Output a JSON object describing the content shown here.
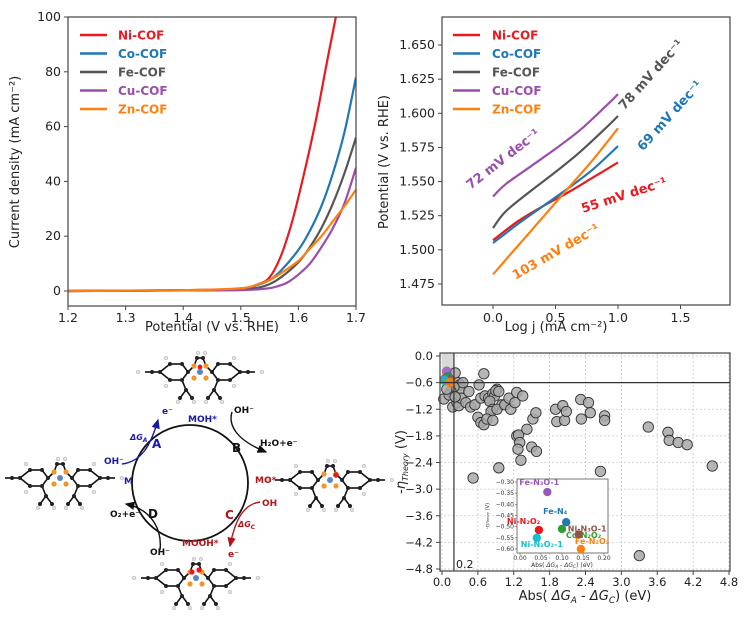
{
  "chart_data": [
    {
      "id": "lsv",
      "type": "line",
      "title": "",
      "xlabel": "Potential (V vs. RHE)",
      "ylabel": "Current density (mA cm⁻²)",
      "xlim": [
        1.2,
        1.7
      ],
      "ylim": [
        -5,
        100
      ],
      "xticks": [
        "1.2",
        "1.3",
        "1.4",
        "1.5",
        "1.6",
        "1.7"
      ],
      "yticks": [
        "0",
        "20",
        "40",
        "60",
        "80",
        "100"
      ],
      "legend_position": "top-left",
      "grid": false,
      "series": [
        {
          "name": "Ni-COF",
          "color": "#e8191f",
          "x": [
            1.2,
            1.4,
            1.5,
            1.53,
            1.55,
            1.57,
            1.59,
            1.61,
            1.63,
            1.65,
            1.665
          ],
          "y": [
            0,
            0.3,
            0.8,
            2.5,
            5,
            13,
            26,
            43,
            62,
            84,
            100
          ]
        },
        {
          "name": "Co-COF",
          "color": "#1f77b4",
          "x": [
            1.2,
            1.4,
            1.5,
            1.53,
            1.55,
            1.57,
            1.6,
            1.62,
            1.64,
            1.66,
            1.68,
            1.7
          ],
          "y": [
            0,
            0.3,
            0.8,
            2.3,
            4,
            7.5,
            15,
            22,
            31,
            43,
            58,
            78
          ]
        },
        {
          "name": "Fe-COF",
          "color": "#555555",
          "x": [
            1.2,
            1.4,
            1.5,
            1.53,
            1.55,
            1.57,
            1.6,
            1.62,
            1.64,
            1.66,
            1.68,
            1.7
          ],
          "y": [
            0,
            0.2,
            0.5,
            1.2,
            2.5,
            5,
            10.5,
            16,
            23,
            32,
            43,
            56
          ]
        },
        {
          "name": "Cu-COF",
          "color": "#9b4dab",
          "x": [
            1.2,
            1.4,
            1.5,
            1.54,
            1.56,
            1.58,
            1.6,
            1.62,
            1.64,
            1.66,
            1.68,
            1.7
          ],
          "y": [
            0,
            0.2,
            0.3,
            0.8,
            1.5,
            3,
            6,
            10,
            16,
            23,
            32,
            45
          ]
        },
        {
          "name": "Zn-COF",
          "color": "#ff7f0e",
          "x": [
            1.2,
            1.4,
            1.5,
            1.53,
            1.55,
            1.57,
            1.6,
            1.62,
            1.64,
            1.66,
            1.68,
            1.7
          ],
          "y": [
            0,
            0.3,
            1,
            2.5,
            4,
            6.5,
            11,
            15.5,
            20,
            25.5,
            31,
            37
          ]
        }
      ]
    },
    {
      "id": "tafel",
      "type": "line",
      "title": "",
      "xlabel": "Log j (mA cm⁻²)",
      "ylabel": "Potential (V vs. RHE)",
      "xlim": [
        -0.4,
        1.9
      ],
      "ylim": [
        1.46,
        1.67
      ],
      "xticks": [
        "0.0",
        "0.5",
        "1.0",
        "1.5"
      ],
      "yticks": [
        "1.475",
        "1.500",
        "1.525",
        "1.550",
        "1.575",
        "1.600",
        "1.625",
        "1.650"
      ],
      "legend_position": "top-left",
      "grid": false,
      "series": [
        {
          "name": "Ni-COF",
          "color": "#e8191f",
          "x": [
            0,
            0.2,
            0.4,
            0.6,
            0.8,
            1.0
          ],
          "y": [
            1.507,
            1.521,
            1.532,
            1.542,
            1.553,
            1.564
          ]
        },
        {
          "name": "Co-COF",
          "color": "#1f77b4",
          "x": [
            0,
            0.2,
            0.4,
            0.6,
            0.8,
            1.0
          ],
          "y": [
            1.505,
            1.519,
            1.532,
            1.545,
            1.559,
            1.576
          ]
        },
        {
          "name": "Fe-COF",
          "color": "#555555",
          "x": [
            0,
            0.1,
            0.3,
            0.5,
            0.7,
            0.9,
            1.0
          ],
          "y": [
            1.516,
            1.528,
            1.543,
            1.557,
            1.572,
            1.589,
            1.598
          ]
        },
        {
          "name": "Cu-COF",
          "color": "#9b4dab",
          "x": [
            0,
            0.1,
            0.3,
            0.5,
            0.7,
            0.9,
            1.0
          ],
          "y": [
            1.539,
            1.548,
            1.561,
            1.574,
            1.588,
            1.605,
            1.614
          ]
        },
        {
          "name": "Zn-COF",
          "color": "#ff7f0e",
          "x": [
            0,
            0.2,
            0.4,
            0.6,
            0.8,
            1.0
          ],
          "y": [
            1.482,
            1.503,
            1.524,
            1.545,
            1.566,
            1.589
          ]
        }
      ],
      "annotations": [
        {
          "text": "72 mV dec⁻¹",
          "color": "#9b4dab",
          "x": -0.18,
          "y": 1.544,
          "angle": -38
        },
        {
          "text": "78 mV dec⁻¹",
          "color": "#555555",
          "x": 1.05,
          "y": 1.602,
          "angle": -48
        },
        {
          "text": "69 mV dec⁻¹",
          "color": "#1f77b4",
          "x": 1.2,
          "y": 1.572,
          "angle": -48
        },
        {
          "text": "55 mV dec⁻¹",
          "color": "#e8191f",
          "x": 0.72,
          "y": 1.527,
          "angle": -18
        },
        {
          "text": "103 mV dec⁻¹",
          "color": "#ff7f0e",
          "x": 0.18,
          "y": 1.478,
          "angle": -30
        }
      ]
    },
    {
      "id": "scatter",
      "type": "scatter",
      "title": "",
      "xlabel": "Abs( ΔG_A - ΔG_C) (eV)",
      "ylabel": "-η_Theory (V)",
      "xlim": [
        -0.05,
        4.85
      ],
      "ylim": [
        -4.85,
        0.05
      ],
      "xticks": [
        "0.0",
        "0.6",
        "1.2",
        "1.8",
        "2.4",
        "3.0",
        "3.6",
        "4.2",
        "4.8"
      ],
      "yticks": [
        "0.0",
        "−0.6",
        "−1.2",
        "−1.8",
        "−2.4",
        "−3.0",
        "−3.6",
        "−4.2",
        "−4.8"
      ],
      "grid": true,
      "reference_lines": {
        "x": 0.2,
        "y": -0.6,
        "x_label": "0.2"
      },
      "highlight_region": {
        "x": [
          0,
          0.2
        ],
        "y": [
          -0.6,
          0
        ]
      },
      "points": [
        [
          0.03,
          -0.97
        ],
        [
          0.22,
          -0.38
        ],
        [
          0.27,
          -0.6
        ],
        [
          0.3,
          -0.65
        ],
        [
          0.3,
          -0.75
        ],
        [
          0.35,
          -0.6
        ],
        [
          0.2,
          -0.7
        ],
        [
          0.15,
          -0.8
        ],
        [
          0.12,
          -0.88
        ],
        [
          0.18,
          -1.15
        ],
        [
          0.25,
          -1.05
        ],
        [
          0.28,
          -1.12
        ],
        [
          0.32,
          -0.95
        ],
        [
          0.22,
          -0.92
        ],
        [
          0.08,
          -0.75
        ],
        [
          0.45,
          -0.8
        ],
        [
          0.4,
          -1.05
        ],
        [
          0.48,
          -1.15
        ],
        [
          0.55,
          -1.1
        ],
        [
          0.62,
          -0.65
        ],
        [
          0.7,
          -0.4
        ],
        [
          0.65,
          -0.95
        ],
        [
          0.72,
          -0.9
        ],
        [
          0.78,
          -0.95
        ],
        [
          0.85,
          -0.85
        ],
        [
          0.88,
          -0.9
        ],
        [
          0.92,
          -0.75
        ],
        [
          0.9,
          -0.78
        ],
        [
          0.8,
          -1.02
        ],
        [
          0.95,
          -0.8
        ],
        [
          1.0,
          -1.1
        ],
        [
          0.85,
          -1.2
        ],
        [
          0.82,
          -1.25
        ],
        [
          0.92,
          -1.2
        ],
        [
          1.05,
          -1.1
        ],
        [
          1.12,
          -0.95
        ],
        [
          1.15,
          -1.2
        ],
        [
          1.22,
          -1.05
        ],
        [
          1.25,
          -0.82
        ],
        [
          1.35,
          -0.9
        ],
        [
          0.6,
          -1.38
        ],
        [
          0.65,
          -1.5
        ],
        [
          0.7,
          -1.55
        ],
        [
          0.75,
          -1.42
        ],
        [
          0.85,
          -1.45
        ],
        [
          1.25,
          -1.8
        ],
        [
          1.28,
          -1.78
        ],
        [
          1.3,
          -1.95
        ],
        [
          1.27,
          -2.1
        ],
        [
          1.32,
          -2.35
        ],
        [
          1.42,
          -1.65
        ],
        [
          1.5,
          -2.05
        ],
        [
          1.52,
          -1.42
        ],
        [
          1.57,
          -1.28
        ],
        [
          1.58,
          -2.15
        ],
        [
          0.95,
          -2.52
        ],
        [
          0.52,
          -2.75
        ],
        [
          1.9,
          -1.2
        ],
        [
          1.92,
          -1.48
        ],
        [
          2.02,
          -1.12
        ],
        [
          2.05,
          -1.45
        ],
        [
          2.08,
          -1.25
        ],
        [
          2.32,
          -0.98
        ],
        [
          2.33,
          -1.42
        ],
        [
          2.45,
          -1.05
        ],
        [
          2.48,
          -1.28
        ],
        [
          2.65,
          -2.6
        ],
        [
          2.72,
          -1.35
        ],
        [
          2.72,
          -1.45
        ],
        [
          3.3,
          -4.5
        ],
        [
          3.45,
          -1.6
        ],
        [
          3.78,
          -1.72
        ],
        [
          3.8,
          -1.9
        ],
        [
          3.95,
          -1.95
        ],
        [
          4.1,
          -2.0
        ],
        [
          4.52,
          -2.48
        ]
      ],
      "highlighted_points": [
        {
          "color": "#9b59b6",
          "x": 0.08,
          "y": -0.35
        },
        {
          "color": "#1f77b4",
          "x": 0.1,
          "y": -0.47
        },
        {
          "color": "#e8191f",
          "x": 0.05,
          "y": -0.52
        },
        {
          "color": "#2ca02c",
          "x": 0.1,
          "y": -0.5
        },
        {
          "color": "#8c564b",
          "x": 0.14,
          "y": -0.53
        },
        {
          "color": "#17becf",
          "x": 0.04,
          "y": -0.55
        },
        {
          "color": "#ff7f0e",
          "x": 0.14,
          "y": -0.6
        }
      ],
      "inset": {
        "xlabel": "Abs( ΔG_A - ΔG_C) (eV)",
        "ylabel": "-η_Theory (V)",
        "xlim": [
          0.0,
          0.2
        ],
        "ylim": [
          -0.61,
          -0.28
        ],
        "xticks": [
          "0.00",
          "0.05",
          "0.10",
          "0.15",
          "0.20"
        ],
        "yticks": [
          "−0.30",
          "−0.35",
          "−0.40",
          "−0.45",
          "−0.50",
          "−0.55",
          "−0.60"
        ],
        "points": [
          {
            "label": "Fe-N₃O-1",
            "color": "#9b59b6",
            "x": 0.065,
            "y": -0.345
          },
          {
            "label": "Fe-N₄",
            "color": "#1f77b4",
            "x": 0.11,
            "y": -0.48
          },
          {
            "label": "Ni-N₂O₂",
            "color": "#e8191f",
            "x": 0.045,
            "y": -0.515
          },
          {
            "label": "Co-N₂O₂",
            "color": "#2ca02c",
            "x": 0.1,
            "y": -0.51
          },
          {
            "label": "Ni-N₃O-1",
            "color": "#8c564b",
            "x": 0.14,
            "y": -0.535
          },
          {
            "label": "Ni-N₂O₂-1",
            "color": "#17becf",
            "x": 0.04,
            "y": -0.55
          },
          {
            "label": "Fe-N₂O₂",
            "color": "#ff7f0e",
            "x": 0.145,
            "y": -0.6
          }
        ]
      }
    }
  ],
  "diagram": {
    "steps": [
      {
        "letter": "A",
        "color": "#1a1aa8",
        "delta": "ΔG_A",
        "in": "OH⁻",
        "out": "e⁻"
      },
      {
        "letter": "B",
        "color": "#111111",
        "in": "OH⁻",
        "out": "H₂O+e⁻"
      },
      {
        "letter": "C",
        "color": "#b0151a",
        "delta": "ΔG_C",
        "in": "OH",
        "out": "e⁻"
      },
      {
        "letter": "D",
        "color": "#111111",
        "in": "OH⁻",
        "out": "O₂+e⁻"
      }
    ],
    "intermediates": {
      "M": "M",
      "MOH": "MOH*",
      "MO": "MO*",
      "MOOH": "MOOH*"
    },
    "labels": {
      "A": "A",
      "B": "B",
      "C": "C",
      "D": "D",
      "dGA_main": "ΔG",
      "dGA_sub": "A",
      "dGC_main": "ΔG",
      "dGC_sub": "C",
      "A_in": "OH⁻",
      "A_out": "e⁻",
      "B_in": "OH⁻",
      "B_out": "H₂O+e⁻",
      "C_in": "OH",
      "C_out": "e⁻",
      "D_in": "OH⁻",
      "D_out": "O₂+e⁻"
    }
  },
  "legend": [
    "Ni-COF",
    "Co-COF",
    "Fe-COF",
    "Cu-COF",
    "Zn-COF"
  ]
}
